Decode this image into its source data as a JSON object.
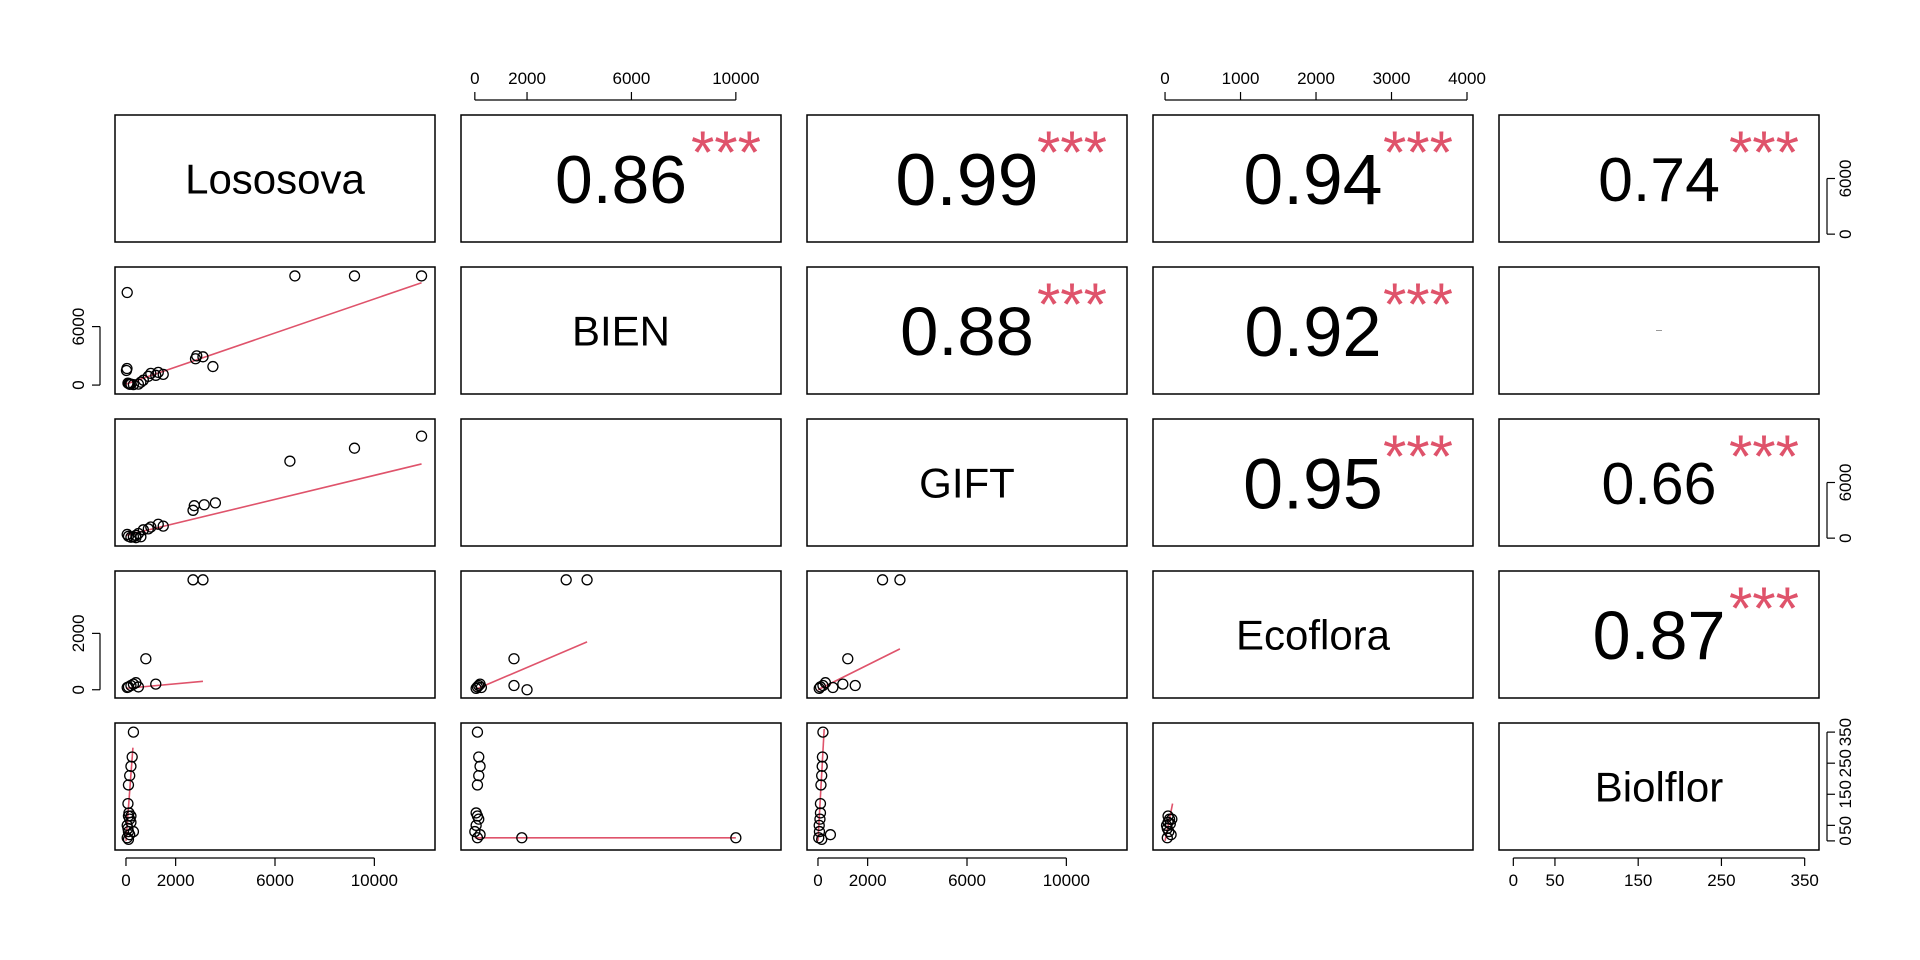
{
  "chart_data": {
    "type": "scatter-matrix",
    "variables": [
      "Lososova",
      "BIEN",
      "GIFT",
      "Ecoflora",
      "Biolflor"
    ],
    "correlations": [
      {
        "pair": [
          "Lososova",
          "BIEN"
        ],
        "r": "0.86",
        "stars": "***"
      },
      {
        "pair": [
          "Lososova",
          "GIFT"
        ],
        "r": "0.99",
        "stars": "***"
      },
      {
        "pair": [
          "Lososova",
          "Ecoflora"
        ],
        "r": "0.94",
        "stars": "***"
      },
      {
        "pair": [
          "Lososova",
          "Biolflor"
        ],
        "r": "0.74",
        "stars": "***"
      },
      {
        "pair": [
          "BIEN",
          "GIFT"
        ],
        "r": "0.88",
        "stars": "***"
      },
      {
        "pair": [
          "BIEN",
          "Ecoflora"
        ],
        "r": "0.92",
        "stars": "***"
      },
      {
        "pair": [
          "BIEN",
          "Biolflor"
        ],
        "r": "",
        "stars": ""
      },
      {
        "pair": [
          "GIFT",
          "Ecoflora"
        ],
        "r": "0.95",
        "stars": "***"
      },
      {
        "pair": [
          "GIFT",
          "Biolflor"
        ],
        "r": "0.66",
        "stars": "***"
      },
      {
        "pair": [
          "Ecoflora",
          "Biolflor"
        ],
        "r": "0.87",
        "stars": "***"
      }
    ],
    "axes": {
      "Lososova": {
        "range": [
          -200,
          12200
        ],
        "ticks": [
          0,
          2000,
          6000,
          10000
        ]
      },
      "BIEN": {
        "range": [
          -300,
          11500
        ],
        "ticks": [
          0,
          2000,
          6000,
          10000
        ]
      },
      "GIFT": {
        "range": [
          -200,
          12200
        ],
        "ticks": [
          0,
          2000,
          6000,
          10000
        ]
      },
      "Ecoflora": {
        "range": [
          -80,
          4000
        ],
        "ticks": [
          0,
          1000,
          2000,
          3000,
          4000
        ],
        "ticks_left": [
          0,
          2000
        ]
      },
      "Biolflor": {
        "range": [
          -10,
          360
        ],
        "ticks": [
          0,
          50,
          150,
          250,
          350
        ],
        "ticks_right": [
          0,
          50,
          150,
          250,
          350
        ]
      }
    },
    "right_axis_ticks": [
      0,
      6000
    ],
    "left_axis_ticks_bien": [
      0,
      6000
    ],
    "scatter": [
      {
        "row": "BIEN",
        "col": "Lososova",
        "points": [
          [
            50,
            9500
          ],
          [
            40,
            1700
          ],
          [
            20,
            1500
          ],
          [
            80,
            200
          ],
          [
            120,
            150
          ],
          [
            150,
            80
          ],
          [
            200,
            100
          ],
          [
            300,
            50
          ],
          [
            500,
            100
          ],
          [
            600,
            300
          ],
          [
            700,
            500
          ],
          [
            900,
            900
          ],
          [
            1000,
            1200
          ],
          [
            1200,
            1000
          ],
          [
            1300,
            1300
          ],
          [
            1500,
            1100
          ],
          [
            2800,
            2700
          ],
          [
            3100,
            2900
          ],
          [
            2850,
            3000
          ],
          [
            3500,
            1900
          ],
          [
            6800,
            11200
          ],
          [
            9200,
            11200
          ],
          [
            11900,
            11200
          ]
        ],
        "fit": [
          [
            0,
            100
          ],
          [
            11900,
            10500
          ]
        ]
      },
      {
        "row": "GIFT",
        "col": "Lososova",
        "points": [
          [
            50,
            400
          ],
          [
            100,
            200
          ],
          [
            200,
            100
          ],
          [
            300,
            150
          ],
          [
            400,
            300
          ],
          [
            500,
            500
          ],
          [
            700,
            900
          ],
          [
            900,
            1000
          ],
          [
            1000,
            1200
          ],
          [
            1300,
            1500
          ],
          [
            1500,
            1300
          ],
          [
            400,
            50
          ],
          [
            600,
            150
          ],
          [
            2700,
            3000
          ],
          [
            2750,
            3500
          ],
          [
            3150,
            3600
          ],
          [
            3600,
            3800
          ],
          [
            6600,
            8300
          ],
          [
            9200,
            9700
          ],
          [
            11900,
            11000
          ]
        ],
        "fit": [
          [
            0,
            300
          ],
          [
            11900,
            8000
          ]
        ]
      },
      {
        "row": "Ecoflora",
        "col": "Lososova",
        "points": [
          [
            50,
            80
          ],
          [
            100,
            100
          ],
          [
            200,
            150
          ],
          [
            300,
            200
          ],
          [
            400,
            250
          ],
          [
            800,
            1100
          ],
          [
            1200,
            200
          ],
          [
            2700,
            3900
          ],
          [
            3100,
            3900
          ],
          [
            500,
            100
          ]
        ],
        "fit": [
          [
            0,
            50
          ],
          [
            3100,
            300
          ]
        ]
      },
      {
        "row": "Biolflor",
        "col": "Lososova",
        "points": [
          [
            300,
            350
          ],
          [
            250,
            270
          ],
          [
            200,
            240
          ],
          [
            150,
            210
          ],
          [
            100,
            180
          ],
          [
            80,
            120
          ],
          [
            120,
            90
          ],
          [
            100,
            80
          ],
          [
            150,
            70
          ],
          [
            200,
            60
          ],
          [
            50,
            50
          ],
          [
            80,
            40
          ],
          [
            100,
            30
          ],
          [
            150,
            20
          ],
          [
            50,
            10
          ],
          [
            100,
            5
          ],
          [
            300,
            30
          ],
          [
            200,
            80
          ]
        ],
        "fit": [
          [
            0,
            0
          ],
          [
            280,
            300
          ]
        ]
      },
      {
        "row": "Ecoflora",
        "col": "BIEN",
        "points": [
          [
            50,
            50
          ],
          [
            100,
            100
          ],
          [
            150,
            150
          ],
          [
            200,
            200
          ],
          [
            250,
            80
          ],
          [
            1500,
            1100
          ],
          [
            1500,
            150
          ],
          [
            2000,
            0
          ],
          [
            3500,
            3900
          ],
          [
            4300,
            3900
          ]
        ],
        "fit": [
          [
            0,
            0
          ],
          [
            4300,
            1700
          ]
        ]
      },
      {
        "row": "Biolflor",
        "col": "BIEN",
        "points": [
          [
            100,
            350
          ],
          [
            150,
            270
          ],
          [
            200,
            240
          ],
          [
            150,
            210
          ],
          [
            100,
            180
          ],
          [
            50,
            90
          ],
          [
            100,
            80
          ],
          [
            150,
            70
          ],
          [
            50,
            50
          ],
          [
            0,
            30
          ],
          [
            100,
            10
          ],
          [
            200,
            20
          ],
          [
            1800,
            10
          ],
          [
            10000,
            10
          ]
        ],
        "fit": [
          [
            0,
            10
          ],
          [
            10000,
            10
          ]
        ]
      },
      {
        "row": "Ecoflora",
        "col": "GIFT",
        "points": [
          [
            50,
            50
          ],
          [
            100,
            100
          ],
          [
            200,
            150
          ],
          [
            300,
            250
          ],
          [
            600,
            80
          ],
          [
            1000,
            200
          ],
          [
            1200,
            1100
          ],
          [
            1500,
            150
          ],
          [
            2600,
            3900
          ],
          [
            3300,
            3900
          ]
        ],
        "fit": [
          [
            0,
            0
          ],
          [
            3300,
            1450
          ]
        ]
      },
      {
        "row": "Biolflor",
        "col": "GIFT",
        "points": [
          [
            200,
            350
          ],
          [
            180,
            270
          ],
          [
            170,
            240
          ],
          [
            150,
            210
          ],
          [
            120,
            180
          ],
          [
            100,
            120
          ],
          [
            100,
            90
          ],
          [
            80,
            70
          ],
          [
            50,
            50
          ],
          [
            60,
            30
          ],
          [
            30,
            10
          ],
          [
            500,
            20
          ],
          [
            150,
            5
          ]
        ],
        "fit": [
          [
            0,
            0
          ],
          [
            250,
            360
          ]
        ]
      },
      {
        "row": "Biolflor",
        "col": "Ecoflora",
        "points": [
          [
            20,
            50
          ],
          [
            30,
            40
          ],
          [
            40,
            60
          ],
          [
            50,
            30
          ],
          [
            60,
            70
          ],
          [
            30,
            10
          ],
          [
            70,
            55
          ],
          [
            80,
            20
          ],
          [
            40,
            80
          ],
          [
            90,
            70
          ]
        ],
        "fit": [
          [
            0,
            0
          ],
          [
            100,
            120
          ]
        ]
      }
    ]
  }
}
